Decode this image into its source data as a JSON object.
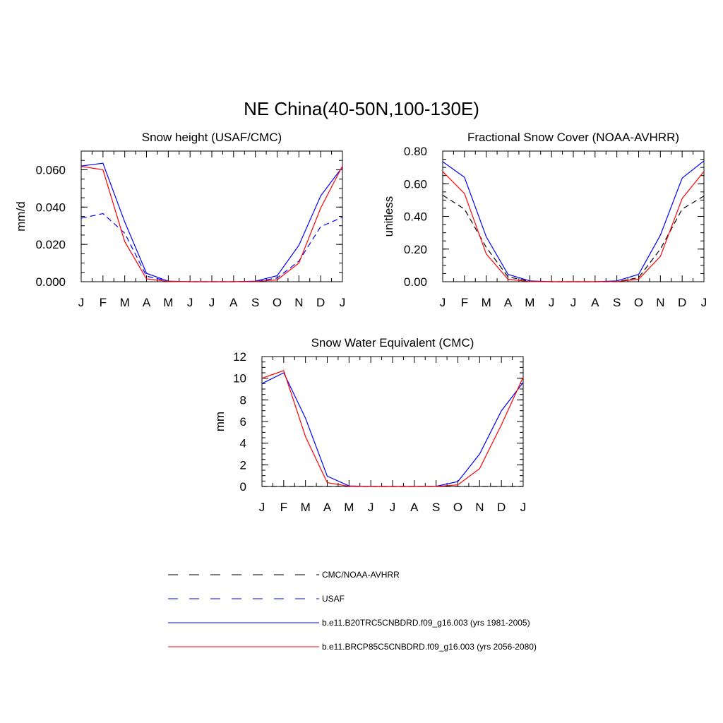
{
  "title": "NE China(40-50N,100-130E)",
  "months": [
    "J",
    "F",
    "M",
    "A",
    "M",
    "J",
    "J",
    "A",
    "S",
    "O",
    "N",
    "D",
    "J"
  ],
  "chart_data": [
    {
      "type": "line",
      "title": "Snow height (USAF/CMC)",
      "ylabel": "mm/d",
      "ylim": [
        0,
        0.07
      ],
      "yticks": [
        0,
        0.02,
        0.04,
        0.06
      ],
      "yticklabels": [
        "0.000",
        "0.020",
        "0.040",
        "0.060"
      ],
      "categories": [
        "J",
        "F",
        "M",
        "A",
        "M",
        "J",
        "J",
        "A",
        "S",
        "O",
        "N",
        "D",
        "J"
      ],
      "series": [
        {
          "name": "USAF",
          "color": "#0000ff",
          "dash": "8,5",
          "values": [
            0.034,
            0.0365,
            0.026,
            0.003,
            0.0003,
            0,
            0,
            0,
            0,
            0.002,
            0.011,
            0.0295,
            0.0345
          ]
        },
        {
          "name": "b.e11.B20TRC5CNBDRD.f09_g16.003 (yrs 1981-2005)",
          "color": "#0000ff",
          "dash": "",
          "values": [
            0.062,
            0.0635,
            0.032,
            0.0045,
            0.0003,
            0,
            0,
            0,
            0.0003,
            0.0032,
            0.0195,
            0.046,
            0.0615
          ]
        },
        {
          "name": "b.e11.BRCP85C5CNBDRD.f09_g16.003 (yrs 2056-2080)",
          "color": "#ff0000",
          "dash": "",
          "values": [
            0.0618,
            0.06,
            0.0215,
            0.0015,
            0.0002,
            0,
            0,
            0,
            0.0001,
            0.001,
            0.01,
            0.0395,
            0.062
          ]
        }
      ]
    },
    {
      "type": "line",
      "title": "Fractional Snow Cover (NOAA-AVHRR)",
      "ylabel": "unitless",
      "ylim": [
        0,
        0.8
      ],
      "yticks": [
        0,
        0.2,
        0.4,
        0.6,
        0.8
      ],
      "yticklabels": [
        "0.00",
        "0.20",
        "0.40",
        "0.60",
        "0.80"
      ],
      "categories": [
        "J",
        "F",
        "M",
        "A",
        "M",
        "J",
        "J",
        "A",
        "S",
        "O",
        "N",
        "D",
        "J"
      ],
      "series": [
        {
          "name": "CMC/NOAA-AVHRR",
          "color": "#000000",
          "dash": "8,5",
          "values": [
            0.53,
            0.445,
            0.21,
            0.03,
            0.003,
            0,
            0,
            0,
            0,
            0.025,
            0.2,
            0.445,
            0.525
          ]
        },
        {
          "name": "b.e11.B20TRC5CNBDRD.f09_g16.003 (yrs 1981-2005)",
          "color": "#0000ff",
          "dash": "",
          "values": [
            0.735,
            0.64,
            0.275,
            0.045,
            0.005,
            0,
            0,
            0,
            0.005,
            0.045,
            0.285,
            0.635,
            0.74
          ]
        },
        {
          "name": "b.e11.BRCP85C5CNBDRD.f09_g16.003 (yrs 2056-2080)",
          "color": "#ff0000",
          "dash": "",
          "values": [
            0.675,
            0.54,
            0.17,
            0.015,
            0.001,
            0,
            0,
            0,
            0.001,
            0.015,
            0.155,
            0.51,
            0.675
          ]
        }
      ]
    },
    {
      "type": "line",
      "title": "Snow Water Equivalent (CMC)",
      "ylabel": "mm",
      "ylim": [
        0,
        12
      ],
      "yticks": [
        0,
        2,
        4,
        6,
        8,
        10,
        12
      ],
      "yticklabels": [
        "0",
        "2",
        "4",
        "6",
        "8",
        "10",
        "12"
      ],
      "categories": [
        "J",
        "F",
        "M",
        "A",
        "M",
        "J",
        "J",
        "A",
        "S",
        "O",
        "N",
        "D",
        "J"
      ],
      "series": [
        {
          "name": "CMC/NOAA-AVHRR",
          "color": "#000000",
          "dash": "8,5",
          "values": [
            0,
            0,
            0,
            0,
            0,
            0,
            0,
            0,
            0,
            0,
            0,
            0,
            0
          ]
        },
        {
          "name": "b.e11.B20TRC5CNBDRD.f09_g16.003 (yrs 1981-2005)",
          "color": "#0000ff",
          "dash": "",
          "values": [
            9.5,
            10.5,
            6.3,
            0.95,
            0.05,
            0,
            0,
            0,
            0.02,
            0.45,
            3.0,
            7.0,
            9.6
          ]
        },
        {
          "name": "b.e11.BRCP85C5CNBDRD.f09_g16.003 (yrs 2056-2080)",
          "color": "#ff0000",
          "dash": "",
          "values": [
            10.0,
            10.7,
            4.6,
            0.35,
            0.02,
            0,
            0,
            0,
            0,
            0.15,
            1.65,
            5.7,
            10.1
          ]
        }
      ]
    }
  ],
  "legend": [
    {
      "label": "CMC/NOAA-AVHRR",
      "color": "#000000",
      "dash": "14,16"
    },
    {
      "label": "USAF",
      "color": "#0000ff",
      "dash": "14,16"
    },
    {
      "label": "b.e11.B20TRC5CNBDRD.f09_g16.003 (yrs 1981-2005)",
      "color": "#0000ff",
      "dash": ""
    },
    {
      "label": "b.e11.BRCP85C5CNBDRD.f09_g16.003 (yrs 2056-2080)",
      "color": "#ff0000",
      "dash": ""
    }
  ]
}
